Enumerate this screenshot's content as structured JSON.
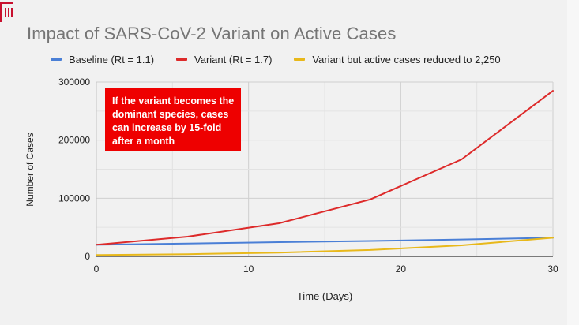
{
  "colors": {
    "baseline": "#4a7fd6",
    "variant": "#dd2a2a",
    "reduced": "#e8b81a",
    "annotation_bg": "#ee0000"
  },
  "chart_data": {
    "type": "line",
    "title": "Impact of SARS-CoV-2 Variant on Active Cases",
    "xlabel": "Time (Days)",
    "ylabel": "Number of Cases",
    "xlim": [
      0,
      30
    ],
    "ylim": [
      0,
      300000
    ],
    "x_ticks": [
      "0",
      "10",
      "20",
      "30"
    ],
    "y_ticks": [
      "0",
      "100000",
      "200000",
      "300000"
    ],
    "grid": true,
    "legend_position": "top",
    "series": [
      {
        "name": "Baseline (Rt =  1.1)",
        "color": "#4a7fd6",
        "x": [
          0,
          6,
          12,
          18,
          24,
          30
        ],
        "y": [
          20000,
          22000,
          24500,
          26500,
          29000,
          32000
        ]
      },
      {
        "name": "Variant (Rt = 1.7)",
        "color": "#dd2a2a",
        "x": [
          0,
          6,
          12,
          18,
          24,
          30
        ],
        "y": [
          20000,
          34000,
          57000,
          98000,
          167000,
          285000
        ]
      },
      {
        "name": "Variant but active cases reduced to 2,250",
        "color": "#e8b81a",
        "x": [
          0,
          6,
          12,
          18,
          24,
          30
        ],
        "y": [
          2250,
          3800,
          6500,
          11000,
          19000,
          32000
        ]
      }
    ],
    "annotation": "If the variant becomes the dominant species, cases can increase by 15-fold after a month"
  }
}
